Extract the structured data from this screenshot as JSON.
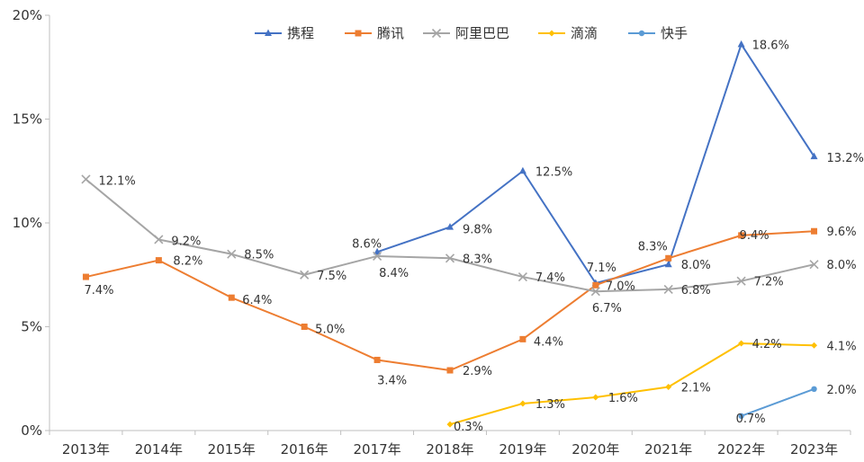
{
  "chart_data": {
    "type": "line",
    "title": "",
    "xlabel": "",
    "ylabel": "",
    "ylim": [
      0,
      20
    ],
    "yticks": [
      "0%",
      "5%",
      "10%",
      "15%",
      "20%"
    ],
    "categories": [
      "2013年",
      "2014年",
      "2015年",
      "2016年",
      "2017年",
      "2018年",
      "2019年",
      "2020年",
      "2021年",
      "2022年",
      "2023年"
    ],
    "grid": false,
    "legend_position": "top",
    "series": [
      {
        "name": "携程",
        "color": "#4472C4",
        "marker": "triangle",
        "values": [
          null,
          null,
          null,
          null,
          8.6,
          9.8,
          12.5,
          7.1,
          8.0,
          18.6,
          13.2
        ],
        "labels": [
          null,
          null,
          null,
          null,
          "8.6%",
          "9.8%",
          "12.5%",
          "7.1%",
          "8.0%",
          "18.6%",
          "13.2%"
        ]
      },
      {
        "name": "腾讯",
        "color": "#ED7D31",
        "marker": "square",
        "values": [
          7.4,
          8.2,
          6.4,
          5.0,
          3.4,
          2.9,
          4.4,
          7.0,
          8.3,
          9.4,
          9.6
        ],
        "labels": [
          "7.4%",
          "8.2%",
          "6.4%",
          "5.0%",
          "3.4%",
          "2.9%",
          "4.4%",
          "7.0%",
          "8.3%",
          "9.4%",
          "9.6%"
        ]
      },
      {
        "name": "阿里巴巴",
        "color": "#A5A5A5",
        "marker": "x",
        "values": [
          12.1,
          9.2,
          8.5,
          7.5,
          8.4,
          8.3,
          7.4,
          6.7,
          6.8,
          7.2,
          8.0
        ],
        "labels": [
          "12.1%",
          "9.2%",
          "8.5%",
          "7.5%",
          "8.4%",
          "8.3%",
          "7.4%",
          "6.7%",
          "6.8%",
          "7.2%",
          "8.0%"
        ]
      },
      {
        "name": "滴滴",
        "color": "#FFC000",
        "marker": "diamond",
        "values": [
          null,
          null,
          null,
          null,
          null,
          0.3,
          1.3,
          1.6,
          2.1,
          4.2,
          4.1
        ],
        "labels": [
          null,
          null,
          null,
          null,
          null,
          "0.3%",
          "1.3%",
          "1.6%",
          "2.1%",
          "4.2%",
          "4.1%"
        ]
      },
      {
        "name": "快手",
        "color": "#5B9BD5",
        "marker": "circle",
        "values": [
          null,
          null,
          null,
          null,
          null,
          null,
          null,
          null,
          null,
          0.7,
          2.0
        ],
        "labels": [
          null,
          null,
          null,
          null,
          null,
          null,
          null,
          null,
          null,
          "0.7%",
          "2.0%"
        ]
      }
    ]
  }
}
